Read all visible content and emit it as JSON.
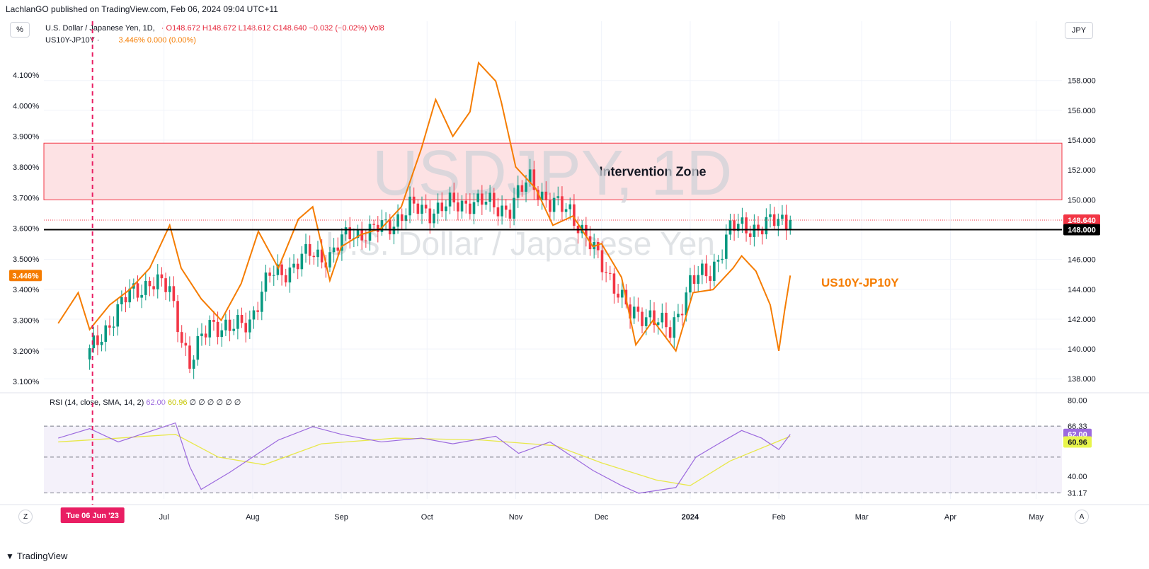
{
  "header": {
    "published_by": "LachlanGO published on TradingView.com, Feb 06, 2024 09:04 UTC+11"
  },
  "legend": {
    "symbol": "U.S. Dollar / Japanese Yen, 1D,",
    "ohlc": "O148.672 H148.672 L148.612 C148.640 −0.032 (−0.02%)",
    "vol": "Vol8",
    "overlay_name": "US10Y-JP10Y ·",
    "overlay_values": "3.446%  0.000 (0.00%)",
    "rsi_name": "RSI (14, close, SMA, 14, 2)",
    "rsi_value": "62.00",
    "rsi_sma_value": "60.96",
    "rsi_extra": "∅ ∅ ∅ ∅ ∅ ∅"
  },
  "buttons": {
    "percent": "%",
    "currency": "JPY",
    "zoom": "Z",
    "auto": "A"
  },
  "footer": {
    "brand": "TradingView"
  },
  "colors": {
    "up": "#089981",
    "down": "#f23645",
    "spread": "#f57c00",
    "rsi": "#9c6ade",
    "rsi_sma": "#e8e84a",
    "zone_fill": "#fde2e4",
    "zone_border": "#f23645",
    "marker": "#e91e63"
  },
  "chart_data": [
    {
      "type": "candlestick",
      "title": "USDJPY, 1D",
      "subtitle": "U.S. Dollar / Japanese Yen",
      "right_axis": {
        "range": [
          137.3,
          159.6
        ],
        "ticks": [
          138.0,
          140.0,
          142.0,
          144.0,
          146.0,
          148.0,
          150.0,
          152.0,
          154.0,
          156.0,
          158.0
        ],
        "labels": [
          "138.000",
          "140.000",
          "142.000",
          "144.000",
          "146.000",
          "148.000",
          "150.000",
          "152.000",
          "154.000",
          "156.000",
          "158.000"
        ]
      },
      "left_axis": {
        "range": [
          3.075,
          4.16
        ],
        "ticks": [
          3.1,
          3.2,
          3.3,
          3.4,
          3.5,
          3.6,
          3.7,
          3.8,
          3.9,
          4.0,
          4.1
        ],
        "labels": [
          "3.100%",
          "3.200%",
          "3.300%",
          "3.400%",
          "3.500%",
          "3.600%",
          "3.700%",
          "3.800%",
          "3.900%",
          "4.000%",
          "4.100%"
        ]
      },
      "x_axis_labels": [
        "Jul",
        "Aug",
        "Sep",
        "Oct",
        "Nov",
        "Dec",
        "2024",
        "Feb",
        "Mar",
        "Apr",
        "May"
      ],
      "x_axis_dates": [
        "2023-07-01",
        "2023-08-01",
        "2023-09-01",
        "2023-10-01",
        "2023-11-01",
        "2023-12-01",
        "2024-01-01",
        "2024-02-01",
        "2024-03-01",
        "2024-04-01",
        "2024-05-01"
      ],
      "annotations": {
        "zone_label": "Intervention Zone",
        "zone_range": [
          150.0,
          153.8
        ],
        "horizontal_line": 148.0,
        "horizontal_line_label": "148.000",
        "last_price": 148.64,
        "last_price_label": "148.640",
        "spread_label": "US10Y-JP10Y",
        "spread_last_label": "3.446%",
        "vertical_marker_label": "Tue 06 Jun '23",
        "vertical_marker_date": "2023-06-06"
      },
      "usdjpy_closes": [
        {
          "date": "2023-06-05",
          "close": 139.7
        },
        {
          "date": "2023-06-12",
          "close": 141.8
        },
        {
          "date": "2023-06-19",
          "close": 143.7
        },
        {
          "date": "2023-06-26",
          "close": 144.5
        },
        {
          "date": "2023-07-03",
          "close": 144.0
        },
        {
          "date": "2023-07-10",
          "close": 138.8
        },
        {
          "date": "2023-07-17",
          "close": 141.9
        },
        {
          "date": "2023-07-24",
          "close": 141.2
        },
        {
          "date": "2023-07-31",
          "close": 142.0
        },
        {
          "date": "2023-08-07",
          "close": 144.9
        },
        {
          "date": "2023-08-14",
          "close": 145.4
        },
        {
          "date": "2023-08-21",
          "close": 146.4
        },
        {
          "date": "2023-08-28",
          "close": 146.2
        },
        {
          "date": "2023-09-04",
          "close": 147.8
        },
        {
          "date": "2023-09-11",
          "close": 147.8
        },
        {
          "date": "2023-09-18",
          "close": 148.4
        },
        {
          "date": "2023-09-25",
          "close": 149.4
        },
        {
          "date": "2023-10-02",
          "close": 149.3
        },
        {
          "date": "2023-10-09",
          "close": 149.6
        },
        {
          "date": "2023-10-16",
          "close": 149.9
        },
        {
          "date": "2023-10-23",
          "close": 149.7
        },
        {
          "date": "2023-10-30",
          "close": 149.4
        },
        {
          "date": "2023-11-06",
          "close": 151.5
        },
        {
          "date": "2023-11-13",
          "close": 149.6
        },
        {
          "date": "2023-11-20",
          "close": 149.4
        },
        {
          "date": "2023-11-27",
          "close": 146.9
        },
        {
          "date": "2023-12-04",
          "close": 144.9
        },
        {
          "date": "2023-12-11",
          "close": 142.2
        },
        {
          "date": "2023-12-18",
          "close": 142.4
        },
        {
          "date": "2023-12-25",
          "close": 141.0
        },
        {
          "date": "2024-01-01",
          "close": 144.6
        },
        {
          "date": "2024-01-08",
          "close": 145.0
        },
        {
          "date": "2024-01-15",
          "close": 148.1
        },
        {
          "date": "2024-01-22",
          "close": 148.1
        },
        {
          "date": "2024-01-29",
          "close": 148.4
        },
        {
          "date": "2024-02-05",
          "close": 148.64
        }
      ],
      "series": [
        {
          "name": "US10Y-JP10Y",
          "unit": "%",
          "points": [
            {
              "date": "2023-05-25",
              "value": 3.29
            },
            {
              "date": "2023-06-01",
              "value": 3.39
            },
            {
              "date": "2023-06-05",
              "value": 3.27
            },
            {
              "date": "2023-06-12",
              "value": 3.35
            },
            {
              "date": "2023-06-19",
              "value": 3.4
            },
            {
              "date": "2023-06-26",
              "value": 3.47
            },
            {
              "date": "2023-07-03",
              "value": 3.61
            },
            {
              "date": "2023-07-07",
              "value": 3.47
            },
            {
              "date": "2023-07-14",
              "value": 3.37
            },
            {
              "date": "2023-07-21",
              "value": 3.3
            },
            {
              "date": "2023-07-28",
              "value": 3.42
            },
            {
              "date": "2023-08-03",
              "value": 3.59
            },
            {
              "date": "2023-08-10",
              "value": 3.47
            },
            {
              "date": "2023-08-17",
              "value": 3.63
            },
            {
              "date": "2023-08-22",
              "value": 3.67
            },
            {
              "date": "2023-08-28",
              "value": 3.43
            },
            {
              "date": "2023-09-01",
              "value": 3.54
            },
            {
              "date": "2023-09-08",
              "value": 3.58
            },
            {
              "date": "2023-09-15",
              "value": 3.6
            },
            {
              "date": "2023-09-22",
              "value": 3.67
            },
            {
              "date": "2023-09-29",
              "value": 3.86
            },
            {
              "date": "2023-10-04",
              "value": 4.02
            },
            {
              "date": "2023-10-10",
              "value": 3.9
            },
            {
              "date": "2023-10-16",
              "value": 3.98
            },
            {
              "date": "2023-10-19",
              "value": 4.14
            },
            {
              "date": "2023-10-25",
              "value": 4.08
            },
            {
              "date": "2023-10-27",
              "value": 4.01
            },
            {
              "date": "2023-11-01",
              "value": 3.8
            },
            {
              "date": "2023-11-08",
              "value": 3.73
            },
            {
              "date": "2023-11-14",
              "value": 3.61
            },
            {
              "date": "2023-11-21",
              "value": 3.64
            },
            {
              "date": "2023-11-28",
              "value": 3.54
            },
            {
              "date": "2023-12-01",
              "value": 3.55
            },
            {
              "date": "2023-12-08",
              "value": 3.44
            },
            {
              "date": "2023-12-13",
              "value": 3.22
            },
            {
              "date": "2023-12-19",
              "value": 3.3
            },
            {
              "date": "2023-12-27",
              "value": 3.2
            },
            {
              "date": "2024-01-02",
              "value": 3.39
            },
            {
              "date": "2024-01-09",
              "value": 3.4
            },
            {
              "date": "2024-01-16",
              "value": 3.47
            },
            {
              "date": "2024-01-19",
              "value": 3.51
            },
            {
              "date": "2024-01-24",
              "value": 3.46
            },
            {
              "date": "2024-01-29",
              "value": 3.35
            },
            {
              "date": "2024-02-01",
              "value": 3.2
            },
            {
              "date": "2024-02-03",
              "value": 3.33
            },
            {
              "date": "2024-02-05",
              "value": 3.446
            }
          ]
        }
      ]
    },
    {
      "type": "line",
      "title": "RSI (14, close, SMA, 14, 2)",
      "y_axis": {
        "range": [
          28,
          82
        ],
        "labels": [
          "31.17",
          "40.00",
          "66.33",
          "80.00"
        ],
        "ticks": [
          31.17,
          40.0,
          66.33,
          80.0
        ]
      },
      "band": [
        31.17,
        66.33
      ],
      "midline": 50,
      "series": [
        {
          "name": "RSI",
          "last": 62.0,
          "points": [
            {
              "date": "2023-05-25",
              "value": 60
            },
            {
              "date": "2023-06-05",
              "value": 65
            },
            {
              "date": "2023-06-15",
              "value": 58
            },
            {
              "date": "2023-06-25",
              "value": 63
            },
            {
              "date": "2023-07-05",
              "value": 68
            },
            {
              "date": "2023-07-10",
              "value": 45
            },
            {
              "date": "2023-07-14",
              "value": 33
            },
            {
              "date": "2023-07-24",
              "value": 42
            },
            {
              "date": "2023-08-03",
              "value": 52
            },
            {
              "date": "2023-08-10",
              "value": 59
            },
            {
              "date": "2023-08-22",
              "value": 66
            },
            {
              "date": "2023-09-01",
              "value": 62
            },
            {
              "date": "2023-09-15",
              "value": 58
            },
            {
              "date": "2023-09-29",
              "value": 60
            },
            {
              "date": "2023-10-10",
              "value": 57
            },
            {
              "date": "2023-10-25",
              "value": 61
            },
            {
              "date": "2023-11-02",
              "value": 52
            },
            {
              "date": "2023-11-13",
              "value": 58
            },
            {
              "date": "2023-11-28",
              "value": 43
            },
            {
              "date": "2023-12-08",
              "value": 35
            },
            {
              "date": "2023-12-14",
              "value": 31
            },
            {
              "date": "2023-12-27",
              "value": 34
            },
            {
              "date": "2024-01-03",
              "value": 50
            },
            {
              "date": "2024-01-12",
              "value": 58
            },
            {
              "date": "2024-01-19",
              "value": 64
            },
            {
              "date": "2024-01-26",
              "value": 60
            },
            {
              "date": "2024-02-01",
              "value": 54
            },
            {
              "date": "2024-02-05",
              "value": 62.0
            }
          ]
        },
        {
          "name": "RSI-based MA",
          "last": 60.96,
          "points": [
            {
              "date": "2023-05-25",
              "value": 58
            },
            {
              "date": "2023-06-15",
              "value": 60
            },
            {
              "date": "2023-07-05",
              "value": 62
            },
            {
              "date": "2023-07-20",
              "value": 50
            },
            {
              "date": "2023-08-05",
              "value": 46
            },
            {
              "date": "2023-08-25",
              "value": 57
            },
            {
              "date": "2023-09-20",
              "value": 60
            },
            {
              "date": "2023-10-20",
              "value": 59
            },
            {
              "date": "2023-11-15",
              "value": 56
            },
            {
              "date": "2023-12-01",
              "value": 47
            },
            {
              "date": "2023-12-20",
              "value": 38
            },
            {
              "date": "2024-01-01",
              "value": 35
            },
            {
              "date": "2024-01-15",
              "value": 48
            },
            {
              "date": "2024-02-05",
              "value": 60.96
            }
          ]
        }
      ]
    }
  ]
}
